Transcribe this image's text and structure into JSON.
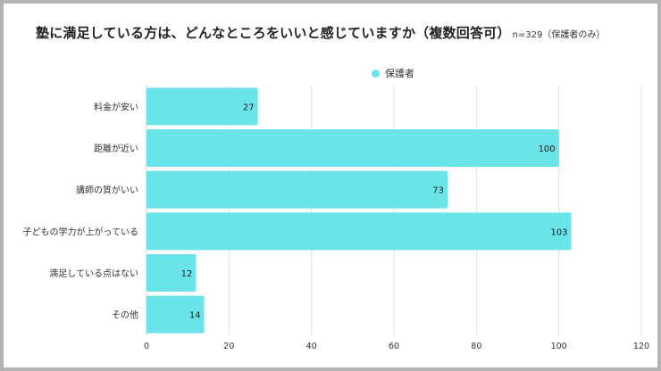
{
  "chart_data": {
    "type": "bar",
    "orientation": "horizontal",
    "title": "塾に満足している方は、どんなところをいいと感じていますか（複数回答可）",
    "subtitle": "n=329（保護者のみ）",
    "categories": [
      "料金が安い",
      "距離が近い",
      "講師の質がいい",
      "子どもの学力が上がっている",
      "満足している点はない",
      "その他"
    ],
    "series": [
      {
        "name": "保護者",
        "color": "#6ae4e8",
        "values": [
          27,
          100,
          73,
          103,
          12,
          14
        ]
      }
    ],
    "xlim": [
      0,
      120
    ],
    "xticks": [
      0,
      20,
      40,
      60,
      80,
      100,
      120
    ],
    "grid": true,
    "legend_position": "top-center",
    "xlabel": "",
    "ylabel": ""
  }
}
